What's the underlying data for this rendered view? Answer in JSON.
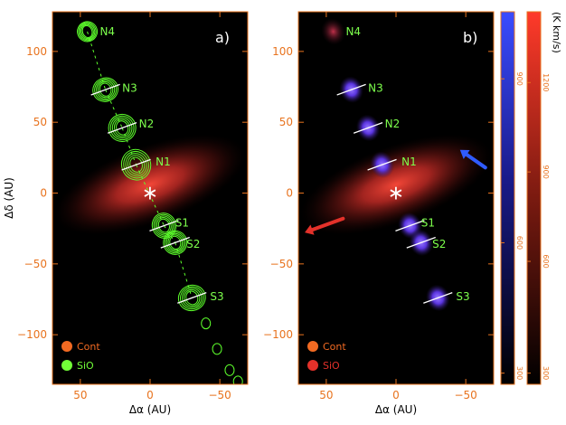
{
  "chart_data": [
    {
      "type": "heatmap",
      "panel_label": "a)",
      "xlabel": "Δα (AU)",
      "ylabel": "Δδ (AU)",
      "xlim": [
        70,
        -70
      ],
      "ylim": [
        -135,
        128
      ],
      "xticks": [
        50,
        0,
        -50
      ],
      "xtick_labels": [
        "50",
        "0",
        "−50"
      ],
      "yticks": [
        100,
        50,
        0,
        -50,
        -100
      ],
      "ytick_labels": [
        "100",
        "50",
        "0",
        "−50",
        "−100"
      ],
      "star": {
        "x": 0,
        "y": 0
      },
      "continuum_disk": {
        "x": 0,
        "y": 6,
        "semi_major": 72,
        "semi_minor": 13,
        "angle_deg": 20
      },
      "knots": [
        {
          "name": "N4",
          "x": 45,
          "y": 114,
          "label_x": 36,
          "label_y": 114,
          "mark": false
        },
        {
          "name": "N3",
          "x": 32,
          "y": 73,
          "label_x": 20,
          "label_y": 74,
          "mark": true
        },
        {
          "name": "N2",
          "x": 20,
          "y": 46,
          "label_x": 8,
          "label_y": 49,
          "mark": true
        },
        {
          "name": "N1",
          "x": 10,
          "y": 20,
          "label_x": -4,
          "label_y": 22,
          "mark": true
        },
        {
          "name": "S1",
          "x": -10,
          "y": -23,
          "label_x": -18,
          "label_y": -21,
          "mark": true
        },
        {
          "name": "S2",
          "x": -18,
          "y": -35,
          "label_x": -26,
          "label_y": -36,
          "mark": true
        },
        {
          "name": "S3",
          "x": -30,
          "y": -74,
          "label_x": -43,
          "label_y": -73,
          "mark": true
        }
      ],
      "legend": [
        {
          "label": "Cont",
          "color": "#f26a22"
        },
        {
          "label": "SiO",
          "color": "#72ff38"
        }
      ]
    },
    {
      "type": "heatmap",
      "panel_label": "b)",
      "xlabel": "Δα (AU)",
      "xlim": [
        70,
        -70
      ],
      "ylim": [
        -135,
        128
      ],
      "xticks": [
        50,
        0,
        -50
      ],
      "xtick_labels": [
        "50",
        "0",
        "−50"
      ],
      "yticks": [
        100,
        50,
        0,
        -50,
        -100
      ],
      "ytick_labels": [
        "100",
        "50",
        "0",
        "−50",
        "−100"
      ],
      "star": {
        "x": 0,
        "y": 0
      },
      "continuum_disk": {
        "x": 0,
        "y": 6,
        "semi_major": 72,
        "semi_minor": 13,
        "angle_deg": 20
      },
      "knots": [
        {
          "name": "N4",
          "x": 45,
          "y": 114,
          "label_x": 36,
          "label_y": 114,
          "mark": false
        },
        {
          "name": "N3",
          "x": 32,
          "y": 73,
          "label_x": 20,
          "label_y": 74,
          "mark": true
        },
        {
          "name": "N2",
          "x": 20,
          "y": 46,
          "label_x": 8,
          "label_y": 49,
          "mark": true
        },
        {
          "name": "N1",
          "x": 10,
          "y": 20,
          "label_x": -4,
          "label_y": 22,
          "mark": true
        },
        {
          "name": "S1",
          "x": -10,
          "y": -23,
          "label_x": -18,
          "label_y": -21,
          "mark": true
        },
        {
          "name": "S2",
          "x": -18,
          "y": -35,
          "label_x": -26,
          "label_y": -36,
          "mark": true
        },
        {
          "name": "S3",
          "x": -30,
          "y": -74,
          "label_x": -43,
          "label_y": -73,
          "mark": true
        }
      ],
      "rotation_arrows": [
        {
          "color": "#2f5bff",
          "from": [
            -64,
            18
          ],
          "to": [
            -48,
            29
          ]
        },
        {
          "color": "#e3312a",
          "from": [
            38,
            -18
          ],
          "to": [
            63,
            -27
          ]
        }
      ],
      "legend": [
        {
          "label": "Cont",
          "color": "#f26a22"
        },
        {
          "label": "SiO",
          "color": "#e3312a"
        }
      ]
    }
  ],
  "colorbars": [
    {
      "name": "blue",
      "unit": "",
      "tick_labels": [
        "900",
        "600",
        "300"
      ],
      "tick_fracs": [
        0.82,
        0.38,
        0.03
      ]
    },
    {
      "name": "red",
      "unit": "(K km/s)",
      "tick_labels": [
        "1200",
        "900",
        "600",
        "300"
      ],
      "tick_fracs": [
        0.81,
        0.57,
        0.33,
        0.03
      ]
    }
  ],
  "colors": {
    "axis": "#e8731e",
    "contour": "#5dff2c",
    "knot_label": "#7dff4c",
    "white": "#ffffff"
  }
}
